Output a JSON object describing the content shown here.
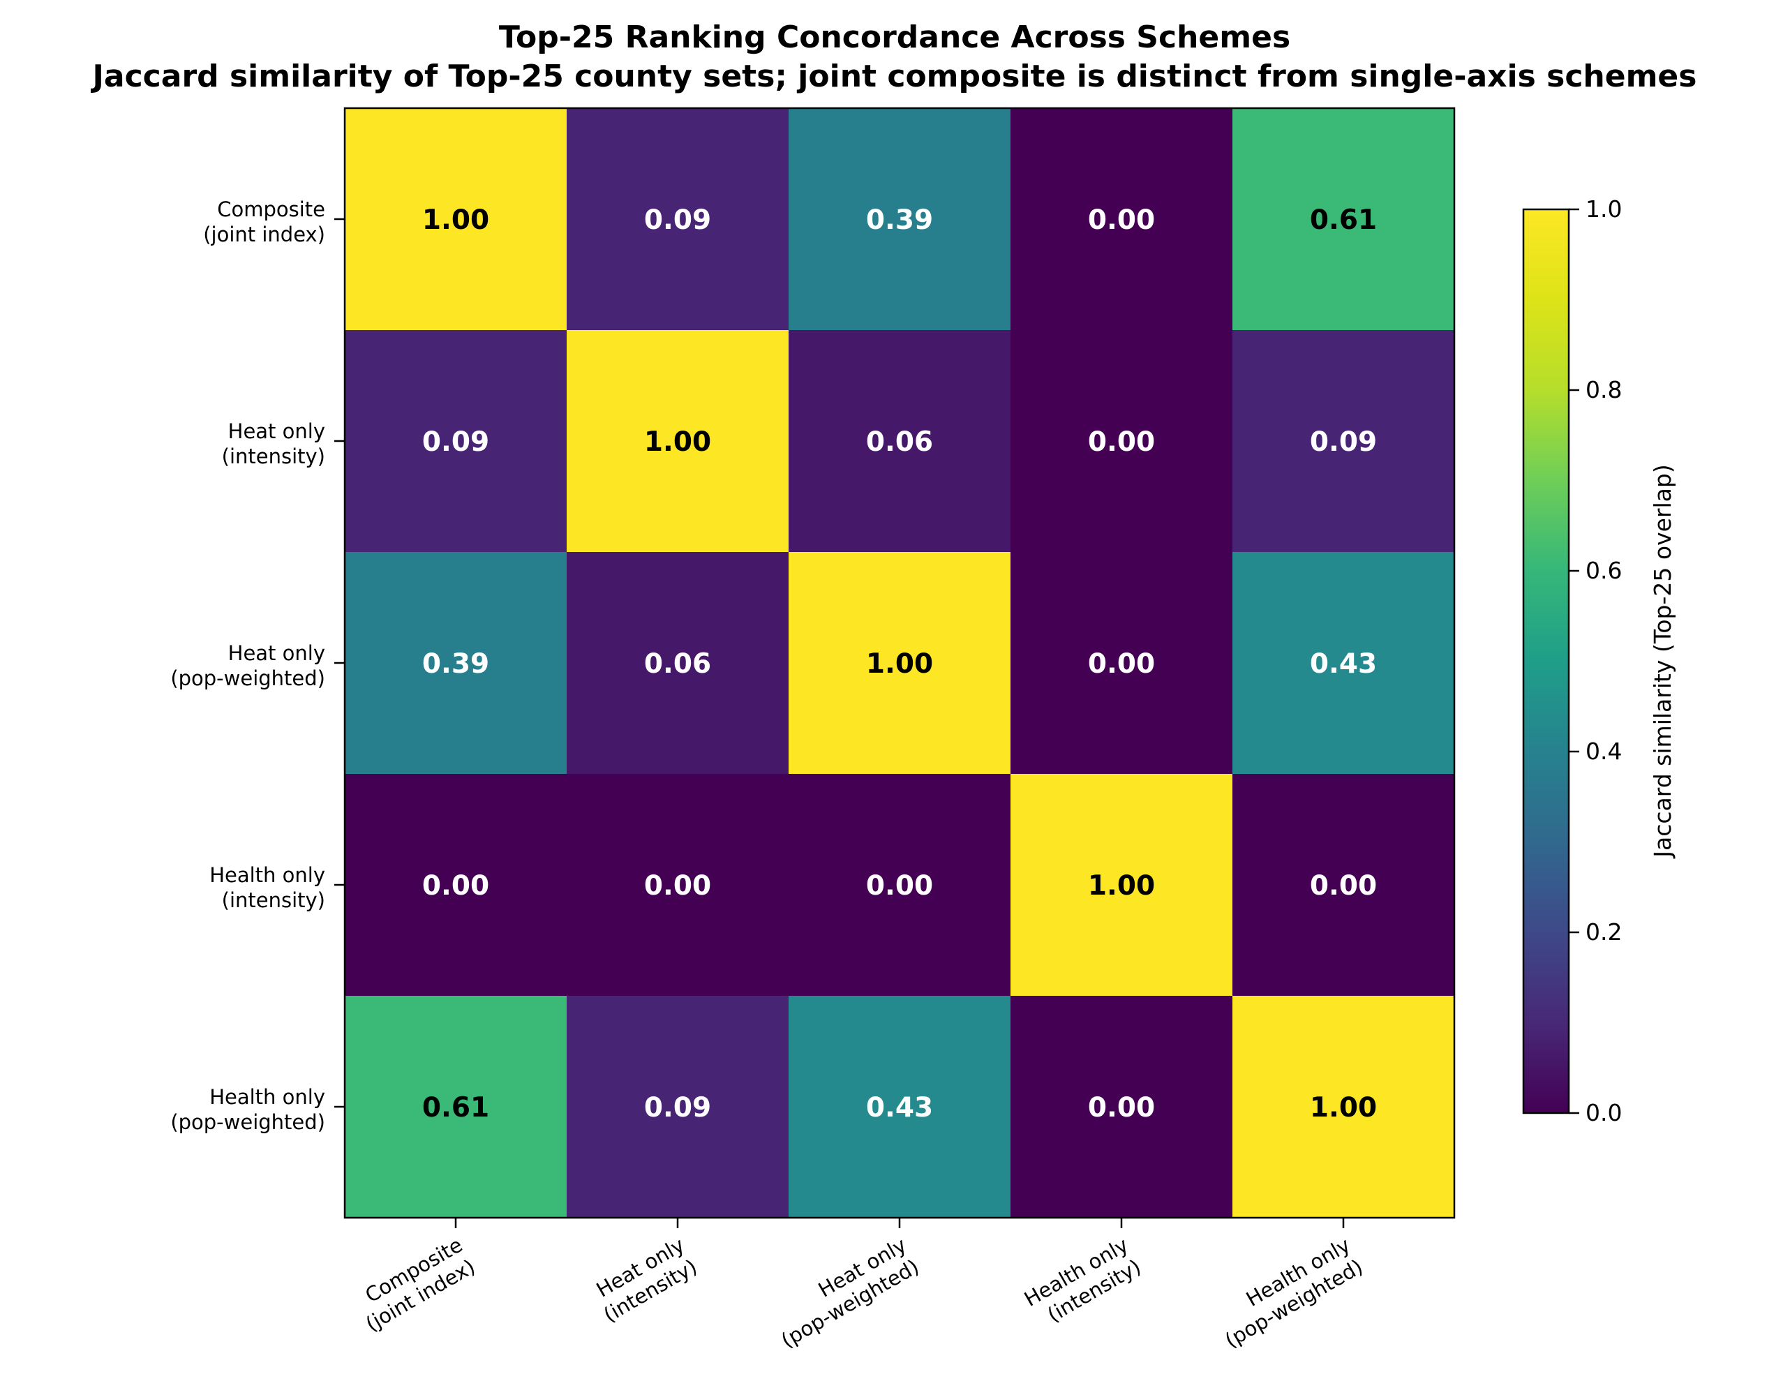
{
  "chart_data": {
    "type": "heatmap",
    "title": "Top-25 Ranking Concordance Across Schemes",
    "subtitle": "Jaccard similarity of Top-25 county sets; joint composite is distinct from single-axis schemes",
    "row_labels": [
      [
        "Composite",
        "(joint index)"
      ],
      [
        "Heat only",
        "(intensity)"
      ],
      [
        "Heat only",
        "(pop-weighted)"
      ],
      [
        "Health only",
        "(intensity)"
      ],
      [
        "Health only",
        "(pop-weighted)"
      ]
    ],
    "col_labels": [
      [
        "Composite",
        "(joint index)"
      ],
      [
        "Heat only",
        "(intensity)"
      ],
      [
        "Heat only",
        "(pop-weighted)"
      ],
      [
        "Health only",
        "(intensity)"
      ],
      [
        "Health only",
        "(pop-weighted)"
      ]
    ],
    "values": [
      [
        1.0,
        0.09,
        0.39,
        0.0,
        0.61
      ],
      [
        0.09,
        1.0,
        0.06,
        0.0,
        0.09
      ],
      [
        0.39,
        0.06,
        1.0,
        0.0,
        0.43
      ],
      [
        0.0,
        0.0,
        0.0,
        1.0,
        0.0
      ],
      [
        0.61,
        0.09,
        0.43,
        0.0,
        1.0
      ]
    ],
    "value_labels": [
      [
        "1.00",
        "0.09",
        "0.39",
        "0.00",
        "0.61"
      ],
      [
        "0.09",
        "1.00",
        "0.06",
        "0.00",
        "0.09"
      ],
      [
        "0.39",
        "0.06",
        "1.00",
        "0.00",
        "0.43"
      ],
      [
        "0.00",
        "0.00",
        "0.00",
        "1.00",
        "0.00"
      ],
      [
        "0.61",
        "0.09",
        "0.43",
        "0.00",
        "1.00"
      ]
    ],
    "colormap": "viridis",
    "vlim": [
      0,
      1
    ],
    "colorbar": {
      "label": "Jaccard similarity (Top-25 overlap)",
      "ticks": [
        "0.0",
        "0.2",
        "0.4",
        "0.6",
        "0.8",
        "1.0"
      ],
      "tick_values": [
        0,
        0.2,
        0.4,
        0.6,
        0.8,
        1.0
      ]
    },
    "annotation_colors": {
      "dark": "#000000",
      "light": "#ffffff"
    }
  }
}
